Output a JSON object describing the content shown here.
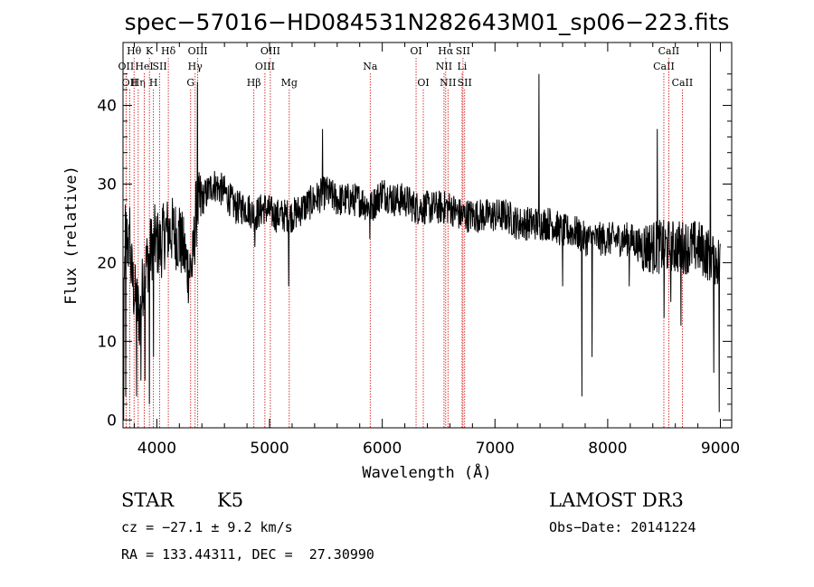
{
  "chart_data": {
    "type": "line",
    "title": "spec−57016−HD084531N282643M01_sp06−223.fits",
    "xlabel": "Wavelength (Å)",
    "ylabel": "Flux (relative)",
    "xlim": [
      3700,
      9100
    ],
    "ylim": [
      -1,
      48
    ],
    "xticks": [
      4000,
      5000,
      6000,
      7000,
      8000,
      9000
    ],
    "yticks": [
      0,
      10,
      20,
      30,
      40
    ],
    "spectrum_anchors": [
      [
        3700,
        5
      ],
      [
        3720,
        24
      ],
      [
        3750,
        22
      ],
      [
        3800,
        16
      ],
      [
        3850,
        13
      ],
      [
        3880,
        18
      ],
      [
        3930,
        21
      ],
      [
        3980,
        23
      ],
      [
        4030,
        22
      ],
      [
        4080,
        24
      ],
      [
        4150,
        24
      ],
      [
        4230,
        22
      ],
      [
        4280,
        19
      ],
      [
        4320,
        20
      ],
      [
        4345,
        26
      ],
      [
        4400,
        28
      ],
      [
        4500,
        30
      ],
      [
        4600,
        29
      ],
      [
        4700,
        27
      ],
      [
        4800,
        27
      ],
      [
        4870,
        26
      ],
      [
        4950,
        27
      ],
      [
        5050,
        26
      ],
      [
        5150,
        26
      ],
      [
        5200,
        26
      ],
      [
        5300,
        27
      ],
      [
        5400,
        28
      ],
      [
        5500,
        29
      ],
      [
        5600,
        28
      ],
      [
        5700,
        28
      ],
      [
        5800,
        28
      ],
      [
        5900,
        27
      ],
      [
        6000,
        29
      ],
      [
        6100,
        28
      ],
      [
        6200,
        28
      ],
      [
        6300,
        27
      ],
      [
        6400,
        27
      ],
      [
        6500,
        27
      ],
      [
        6600,
        27
      ],
      [
        6700,
        26
      ],
      [
        6800,
        26
      ],
      [
        6900,
        26
      ],
      [
        7000,
        26
      ],
      [
        7100,
        26
      ],
      [
        7200,
        25
      ],
      [
        7300,
        25
      ],
      [
        7400,
        25
      ],
      [
        7500,
        25
      ],
      [
        7600,
        24
      ],
      [
        7700,
        24
      ],
      [
        7800,
        23
      ],
      [
        7900,
        23
      ],
      [
        8000,
        23
      ],
      [
        8100,
        23
      ],
      [
        8200,
        23
      ],
      [
        8300,
        22
      ],
      [
        8400,
        22
      ],
      [
        8500,
        22
      ],
      [
        8600,
        22
      ],
      [
        8700,
        22
      ],
      [
        8800,
        22
      ],
      [
        8900,
        21
      ],
      [
        9000,
        20
      ]
    ],
    "spectrum_features": [
      [
        3705,
        0
      ],
      [
        3725,
        3
      ],
      [
        3760,
        27
      ],
      [
        3820,
        3
      ],
      [
        3860,
        5
      ],
      [
        3895,
        5
      ],
      [
        3935,
        2
      ],
      [
        3970,
        8
      ],
      [
        4050,
        27
      ],
      [
        4200,
        27
      ],
      [
        4360,
        43
      ],
      [
        4870,
        22
      ],
      [
        5170,
        17
      ],
      [
        5470,
        37
      ],
      [
        5890,
        23
      ],
      [
        6570,
        28
      ],
      [
        7390,
        44
      ],
      [
        7600,
        17
      ],
      [
        7770,
        3
      ],
      [
        7860,
        8
      ],
      [
        8190,
        17
      ],
      [
        8440,
        37
      ],
      [
        8500,
        13
      ],
      [
        8560,
        15
      ],
      [
        8650,
        12
      ],
      [
        8910,
        48
      ],
      [
        8940,
        6
      ],
      [
        8990,
        1
      ]
    ],
    "spectral_lines": [
      {
        "wavelength": 3727,
        "label": "OII",
        "row": 2
      },
      {
        "wavelength": 3760,
        "label": "OII",
        "row": 3
      },
      {
        "wavelength": 3798,
        "label": "Hθ",
        "row": 1
      },
      {
        "wavelength": 3835,
        "label": "Hη",
        "row": 3
      },
      {
        "wavelength": 3889,
        "label": "HeI",
        "row": 2
      },
      {
        "wavelength": 3934,
        "label": "K",
        "row": 1
      },
      {
        "wavelength": 3970,
        "label": "H",
        "row": 3
      },
      {
        "wavelength": 4026,
        "label": "SII",
        "row": 2
      },
      {
        "wavelength": 4102,
        "label": "Hδ",
        "row": 1
      },
      {
        "wavelength": 4300,
        "label": "G",
        "row": 3
      },
      {
        "wavelength": 4340,
        "label": "Hγ",
        "row": 2
      },
      {
        "wavelength": 4363,
        "label": "OIII",
        "row": 1
      },
      {
        "wavelength": 4861,
        "label": "Hβ",
        "row": 3
      },
      {
        "wavelength": 4959,
        "label": "OIII",
        "row": 2
      },
      {
        "wavelength": 5007,
        "label": "OIII",
        "row": 1
      },
      {
        "wavelength": 5175,
        "label": "Mg",
        "row": 3
      },
      {
        "wavelength": 5893,
        "label": "Na",
        "row": 2
      },
      {
        "wavelength": 6300,
        "label": "OI",
        "row": 1
      },
      {
        "wavelength": 6364,
        "label": "OI",
        "row": 3
      },
      {
        "wavelength": 6548,
        "label": "NII",
        "row": 2
      },
      {
        "wavelength": 6563,
        "label": "Hα",
        "row": 1
      },
      {
        "wavelength": 6583,
        "label": "NII",
        "row": 3
      },
      {
        "wavelength": 6708,
        "label": "Li",
        "row": 2
      },
      {
        "wavelength": 6716,
        "label": "SII",
        "row": 1
      },
      {
        "wavelength": 6731,
        "label": "SII",
        "row": 3
      },
      {
        "wavelength": 8498,
        "label": "CaII",
        "row": 2
      },
      {
        "wavelength": 8542,
        "label": "CaII",
        "row": 1
      },
      {
        "wavelength": 8662,
        "label": "CaII",
        "row": 3
      }
    ]
  },
  "info": {
    "object_class": "STAR",
    "subclass": "K5",
    "survey": "LAMOST DR3",
    "redshift": "cz = −27.1 ± 9.2 km/s",
    "obs_date": "Obs−Date: 20141224",
    "coords": "RA = 133.44311, DEC =  27.30990"
  },
  "colors": {
    "spectrum": "#000000",
    "line_markers": "#cc0000",
    "axes": "#000000"
  }
}
